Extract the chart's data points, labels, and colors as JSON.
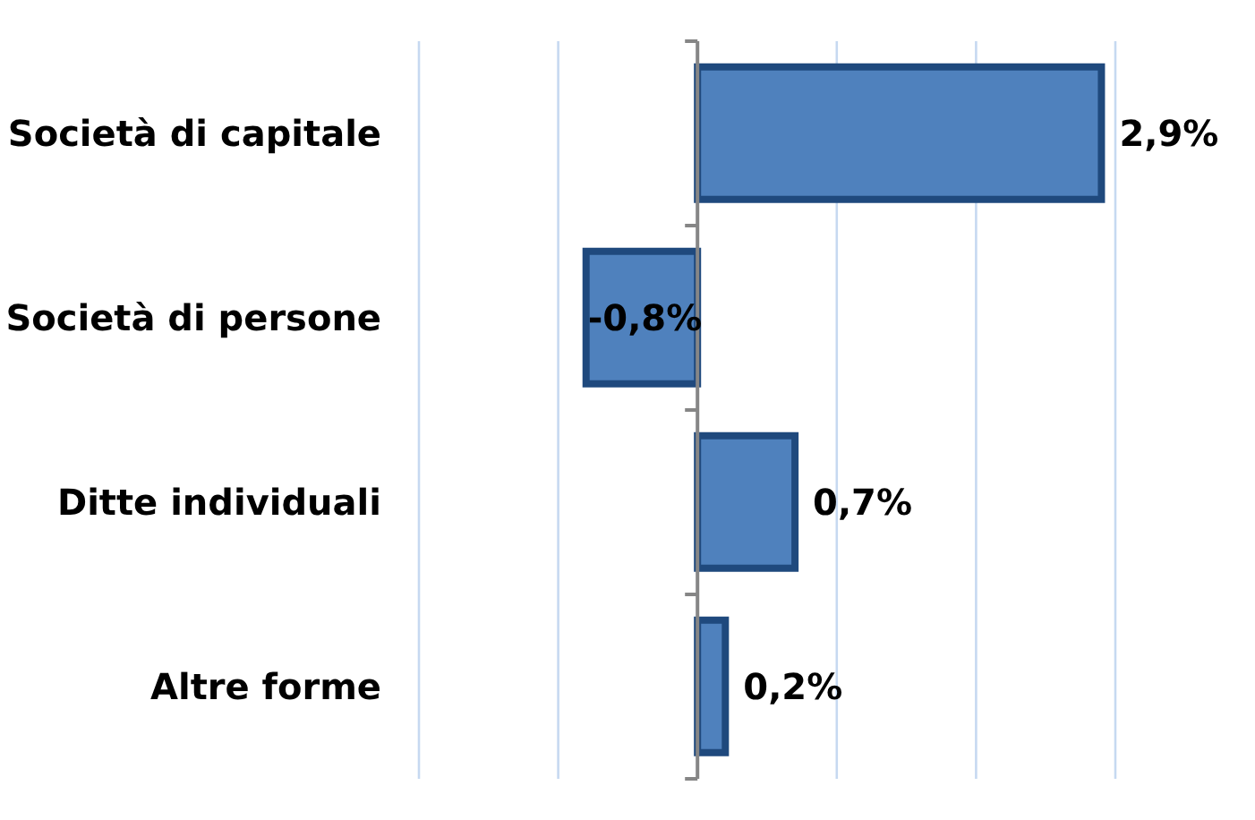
{
  "chart_data": {
    "type": "bar",
    "orientation": "horizontal",
    "categories": [
      "Società di capitale",
      "Società di persone",
      "Ditte individuali",
      "Altre forme"
    ],
    "values": [
      2.9,
      -0.8,
      0.7,
      0.2
    ],
    "color": "#4f81bd",
    "value_labels": [
      "2,9%",
      "-0,8%",
      "0,7%",
      "0,2%"
    ],
    "xlim": [
      -2,
      3
    ],
    "xticks": [
      {
        "value": -2,
        "label": null
      },
      {
        "value": -1,
        "label": null
      },
      {
        "value": 0,
        "label": null
      },
      {
        "value": 1,
        "label": null
      },
      {
        "value": 2,
        "label": null
      },
      {
        "value": 3,
        "label": null
      }
    ],
    "grid": "x",
    "tick_labels": "y"
  }
}
